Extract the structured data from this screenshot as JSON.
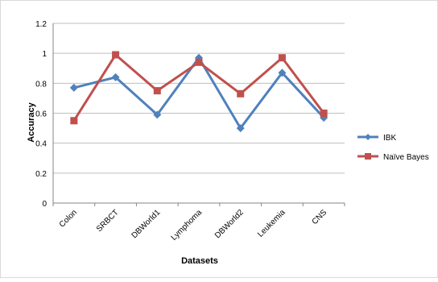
{
  "chart_data": {
    "type": "line",
    "title": "",
    "xlabel": "Datasets",
    "ylabel": "Accuracy",
    "categories": [
      "Colon",
      "SRBCT",
      "DBWorld1",
      "Lymphoma",
      "DBWorld2",
      "Leukemia",
      "CNS"
    ],
    "ylim": [
      0,
      1.2
    ],
    "yticks": [
      "0",
      "0.2",
      "0.4",
      "0.6",
      "0.8",
      "1",
      "1.2"
    ],
    "grid": true,
    "legend_position": "right",
    "series": [
      {
        "name": "IBK",
        "color": "#4F81BD",
        "marker": "diamond",
        "values": [
          0.77,
          0.84,
          0.59,
          0.97,
          0.5,
          0.87,
          0.57
        ]
      },
      {
        "name": "Naïve Bayes",
        "color": "#C0504D",
        "marker": "square",
        "values": [
          0.55,
          0.99,
          0.75,
          0.94,
          0.73,
          0.97,
          0.6
        ]
      }
    ]
  }
}
